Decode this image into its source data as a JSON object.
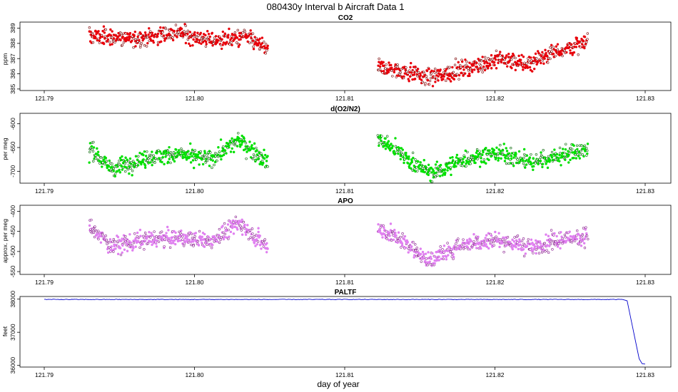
{
  "chart_data": {
    "type": "scatter",
    "title": "080430y   Interval b Aircraft Data 1",
    "xlabel": "day of year",
    "x_range": [
      121.79,
      121.83
    ],
    "x_ticks": [
      "121.79",
      "121.80",
      "121.81",
      "121.82",
      "121.83"
    ],
    "panels": [
      {
        "id": "co2",
        "title": "CO2",
        "ylabel": "ppm",
        "style": "scatter",
        "color": "#e8000b",
        "edge_color": "#7a0000",
        "ylim": [
          384.9,
          389.4
        ],
        "yticks": [
          389,
          388,
          387,
          386,
          385
        ],
        "segments": [
          {
            "x_start": 121.793,
            "x_end": 121.8049,
            "trend": [
              [
                121.793,
                388.5
              ],
              [
                121.796,
                388.3
              ],
              [
                121.799,
                388.7
              ],
              [
                121.801,
                388.2
              ],
              [
                121.8035,
                388.4
              ],
              [
                121.8049,
                387.6
              ]
            ]
          },
          {
            "x_start": 121.8122,
            "x_end": 121.8262,
            "trend": [
              [
                121.8122,
                386.4
              ],
              [
                121.8145,
                386.1
              ],
              [
                121.8155,
                385.7
              ],
              [
                121.8178,
                386.3
              ],
              [
                121.8205,
                387.0
              ],
              [
                121.822,
                386.6
              ],
              [
                121.8235,
                387.3
              ],
              [
                121.8262,
                388.1
              ]
            ]
          }
        ]
      },
      {
        "id": "o2n2",
        "title": "d(O2/N2)",
        "ylabel": "per meg",
        "style": "scatter",
        "color": "#00e000",
        "edge_color": "#006400",
        "ylim": [
          -725,
          -578
        ],
        "yticks": [
          -600,
          -650,
          -700
        ],
        "segments": [
          {
            "x_start": 121.793,
            "x_end": 121.8049,
            "trend": [
              [
                121.793,
                -650
              ],
              [
                121.7945,
                -695
              ],
              [
                121.797,
                -670
              ],
              [
                121.799,
                -665
              ],
              [
                121.801,
                -675
              ],
              [
                121.803,
                -635
              ],
              [
                121.8049,
                -680
              ]
            ]
          },
          {
            "x_start": 121.8122,
            "x_end": 121.8262,
            "trend": [
              [
                121.8122,
                -630
              ],
              [
                121.8145,
                -680
              ],
              [
                121.8158,
                -705
              ],
              [
                121.818,
                -675
              ],
              [
                121.82,
                -660
              ],
              [
                121.8225,
                -680
              ],
              [
                121.8245,
                -665
              ],
              [
                121.8262,
                -655
              ]
            ]
          }
        ]
      },
      {
        "id": "apo",
        "title": "APO",
        "ylabel": "approx. per meg",
        "style": "scatter",
        "color": "#e080f0",
        "edge_color": "#8a2090",
        "ylim": [
          -557,
          -385
        ],
        "yticks": [
          -400,
          -450,
          -500,
          -550
        ],
        "segments": [
          {
            "x_start": 121.793,
            "x_end": 121.8049,
            "trend": [
              [
                121.793,
                -440
              ],
              [
                121.7945,
                -485
              ],
              [
                121.797,
                -470
              ],
              [
                121.799,
                -465
              ],
              [
                121.801,
                -475
              ],
              [
                121.803,
                -430
              ],
              [
                121.8049,
                -490
              ]
            ]
          },
          {
            "x_start": 121.8122,
            "x_end": 121.8262,
            "trend": [
              [
                121.8122,
                -440
              ],
              [
                121.8145,
                -490
              ],
              [
                121.8155,
                -525
              ],
              [
                121.818,
                -480
              ],
              [
                121.82,
                -470
              ],
              [
                121.8225,
                -490
              ],
              [
                121.8245,
                -470
              ],
              [
                121.8262,
                -460
              ]
            ]
          }
        ]
      },
      {
        "id": "paltf",
        "title": "PALTF",
        "ylabel": "feet",
        "style": "line",
        "color": "#0000cc",
        "ylim": [
          35950,
          38080
        ],
        "yticks": [
          38000,
          37000,
          36000
        ],
        "line": [
          [
            121.79,
            37990
          ],
          [
            121.8,
            37990
          ],
          [
            121.81,
            37990
          ],
          [
            121.82,
            37990
          ],
          [
            121.8285,
            37990
          ],
          [
            121.8288,
            37950
          ],
          [
            121.8296,
            36200
          ],
          [
            121.8298,
            36050
          ],
          [
            121.83,
            36040
          ]
        ]
      }
    ]
  }
}
